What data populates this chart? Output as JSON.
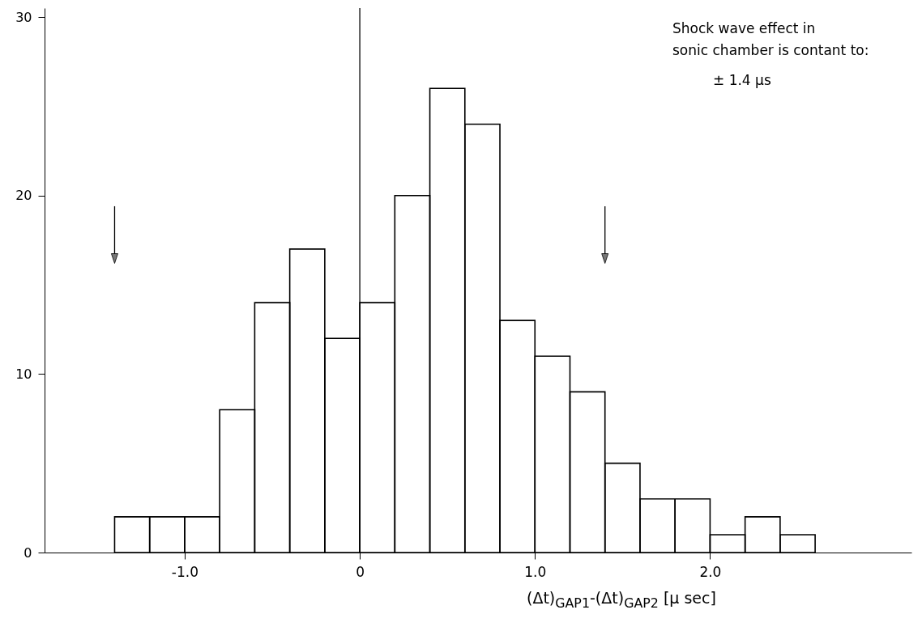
{
  "chart_data": {
    "type": "histogram",
    "bins": [
      -1.4,
      -1.2,
      -1.0,
      -0.8,
      -0.6,
      -0.4,
      -0.2,
      0,
      0.2,
      0.4,
      0.6,
      0.8,
      1.0,
      1.2,
      1.4,
      1.6,
      1.8,
      2.0,
      2.2,
      2.4,
      2.6
    ],
    "values": [
      2,
      2,
      2,
      8,
      14,
      17,
      12,
      14,
      20,
      26,
      24,
      13,
      11,
      9,
      5,
      3,
      3,
      1,
      2,
      1
    ],
    "color": "#000000",
    "xlabel": "(Δt)$_{GAP1}$-(Δt)$_{GAP2}$ [µ sec]",
    "xlim": [
      -1.8,
      3.15
    ],
    "xticks": [
      {
        "value": -1,
        "label": "-1.0"
      },
      0,
      {
        "value": 1,
        "label": "1.0"
      },
      {
        "value": 2,
        "label": "2.0"
      }
    ],
    "ylim": [
      0,
      30.5
    ],
    "yticks": [
      0,
      10,
      20,
      30
    ],
    "grid": false,
    "ref_lines": [
      {
        "axis": "x",
        "value": 0,
        "label": null
      }
    ],
    "annotations": [
      "Shock wave effect in sonic chamber is contant to:",
      "± 1.4 µs"
    ]
  }
}
